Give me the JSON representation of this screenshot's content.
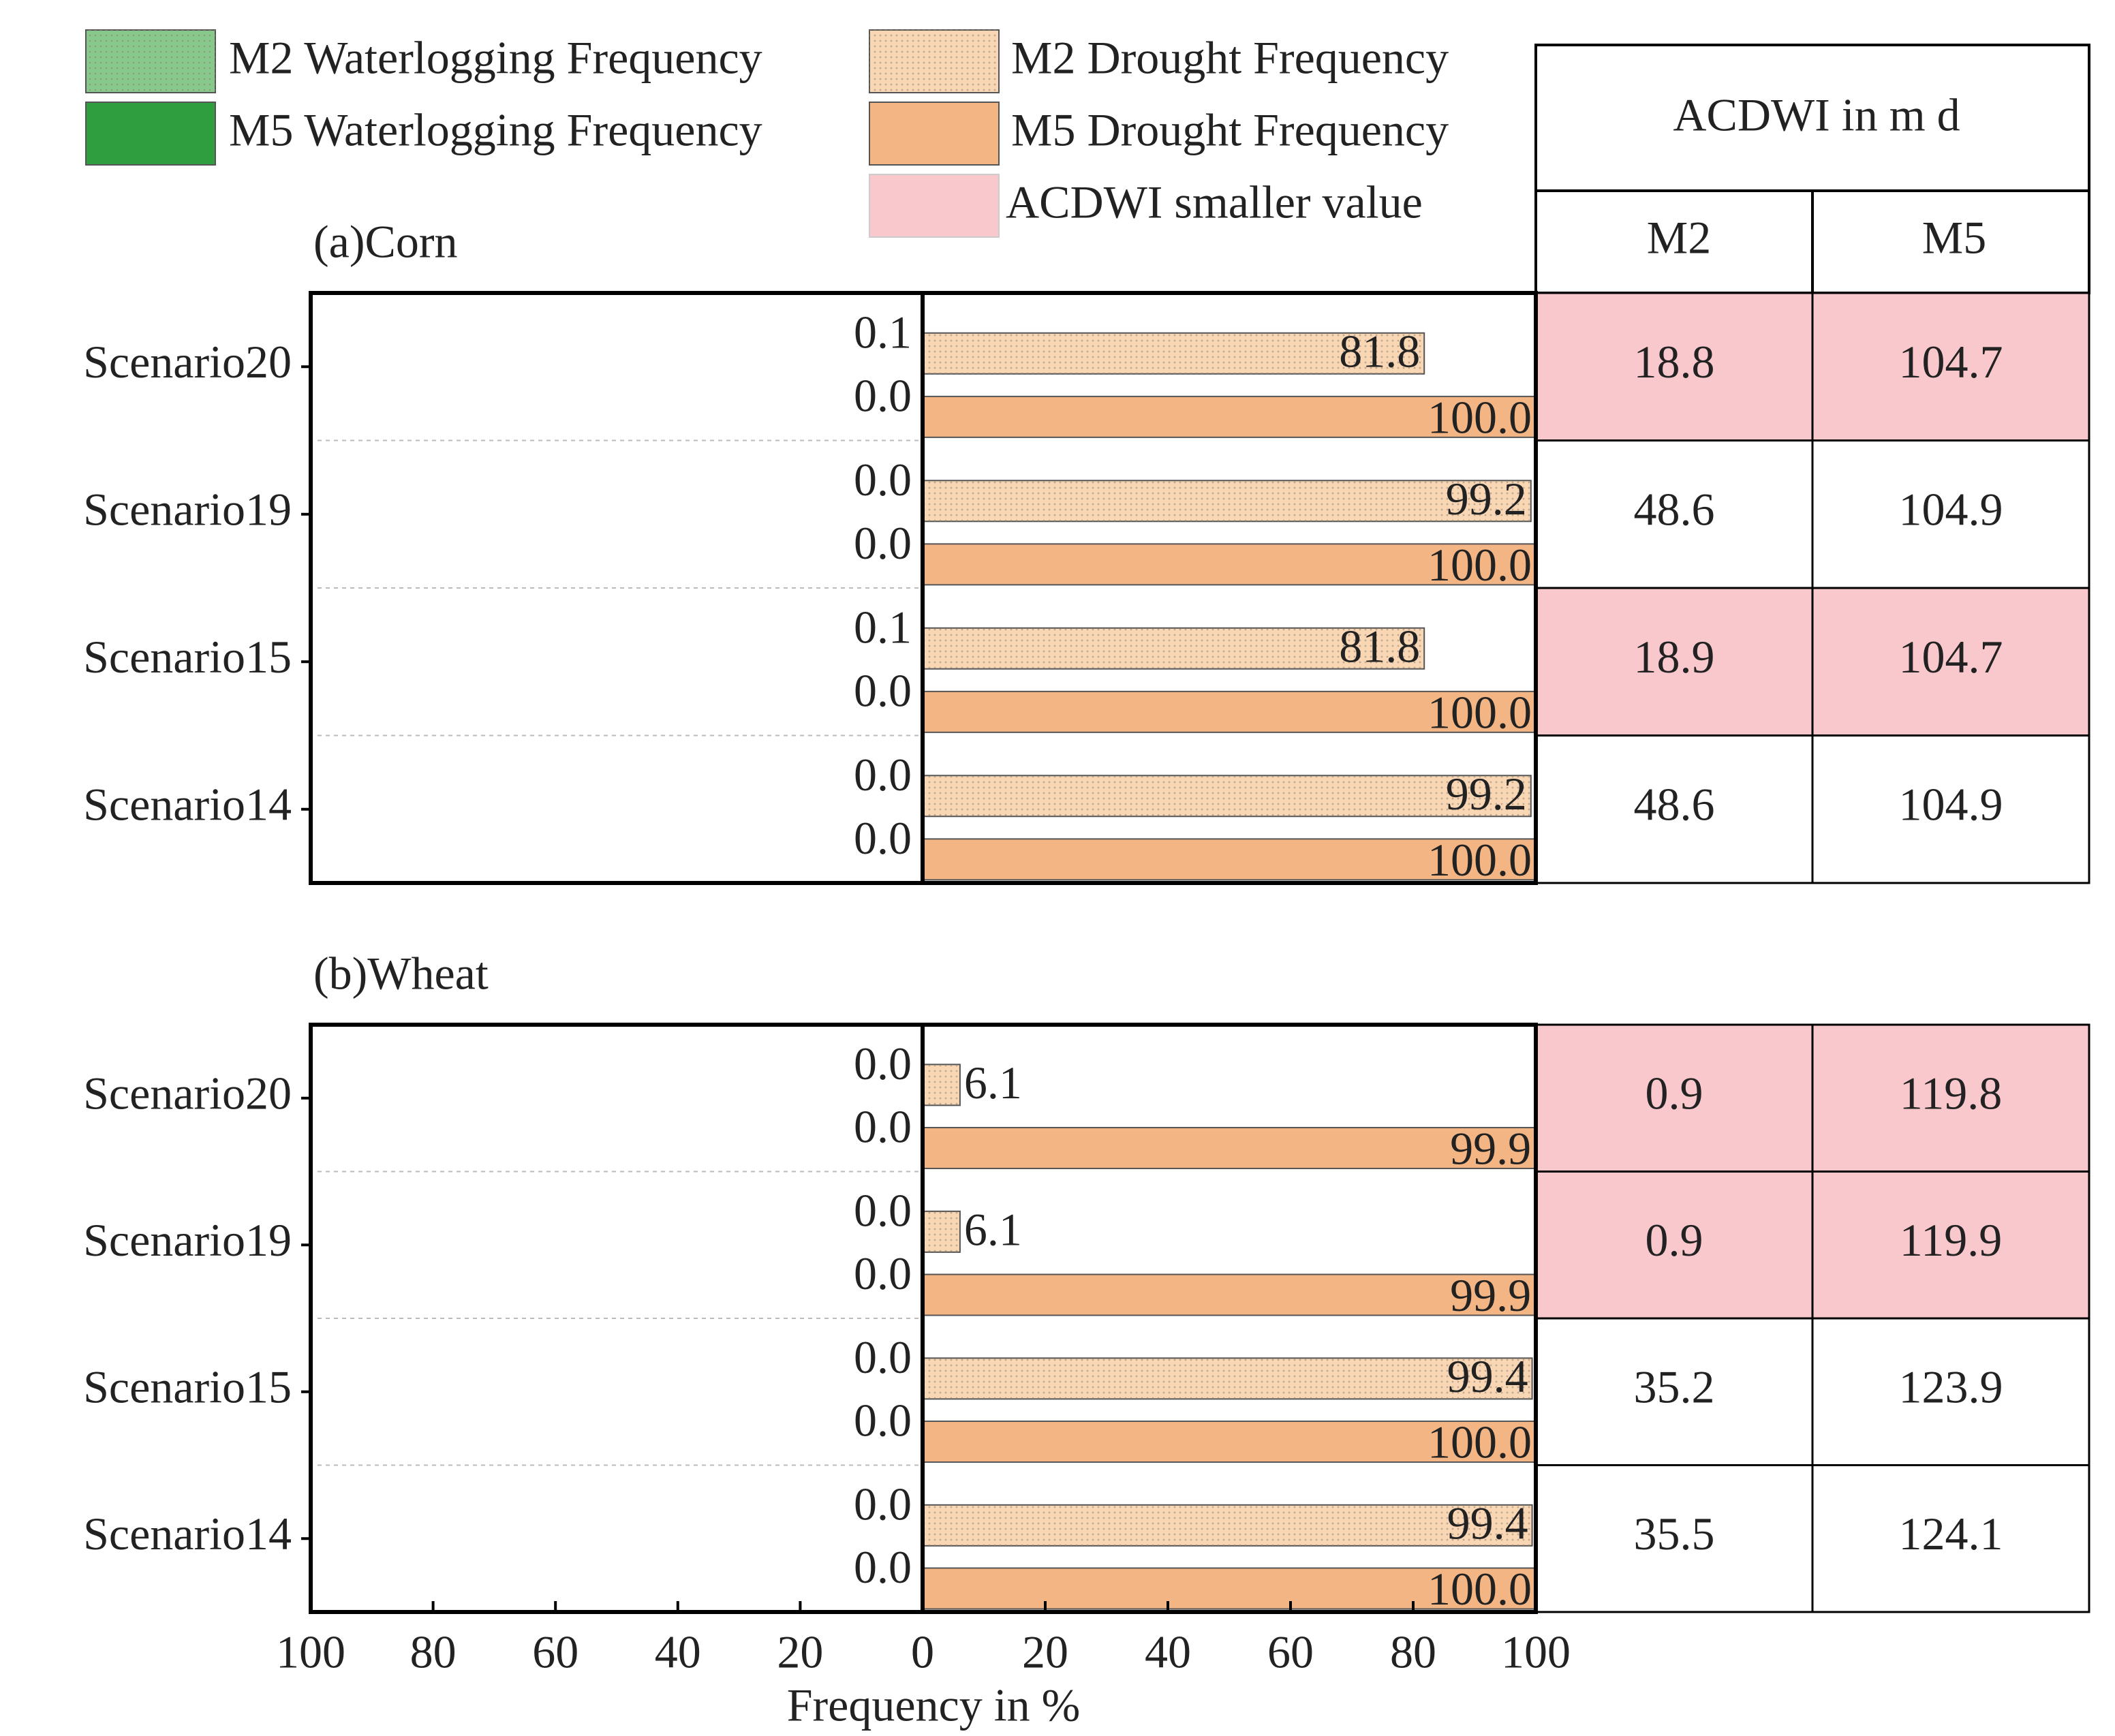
{
  "legend": [
    {
      "name": "M2 Waterlogging Frequency",
      "color": "#86c98a",
      "dotted": true
    },
    {
      "name": "M5 Waterlogging Frequency",
      "color": "#2f9e3f",
      "dotted": false
    },
    {
      "name": "M2 Drought Frequency",
      "color": "#f9d6b4",
      "dotted": true
    },
    {
      "name": "M5 Drought Frequency",
      "color": "#f3b584",
      "dotted": false
    },
    {
      "name": "ACDWI smaller value",
      "color": "#f8c8cc",
      "dotted": false
    }
  ],
  "table": {
    "header": "ACDWI in m d",
    "columns": [
      "M2",
      "M5"
    ]
  },
  "chart_data": [
    {
      "type": "butterfly-bar",
      "title": "(a)Corn",
      "categories": [
        "Scenario20",
        "Scenario19",
        "Scenario15",
        "Scenario14"
      ],
      "xlim_left": [
        100,
        0
      ],
      "xlim": [
        0,
        100
      ],
      "series": [
        {
          "values": [
            0.1,
            0.0,
            0.1,
            0.0
          ],
          "value_labels": [
            "0.1",
            "0.0",
            "0.1",
            "0.0"
          ]
        },
        {
          "values": [
            0.0,
            0.0,
            0.0,
            0.0
          ],
          "value_labels": [
            "0.0",
            "0.0",
            "0.0",
            "0.0"
          ]
        },
        {
          "values": [
            81.8,
            99.2,
            81.8,
            99.2
          ],
          "value_labels": [
            "81.8",
            "99.2",
            "81.8",
            "99.2"
          ]
        },
        {
          "values": [
            100,
            100,
            100,
            100
          ],
          "value_labels": [
            "100.0",
            "100.0",
            "100.0",
            "100.0"
          ]
        }
      ],
      "acdwi": {
        "M2": [
          18.8,
          48.6,
          18.9,
          48.6
        ],
        "M5": [
          104.7,
          104.9,
          104.7,
          104.9
        ],
        "smaller": [
          true,
          false,
          true,
          false
        ]
      }
    },
    {
      "type": "butterfly-bar",
      "title": "(b)Wheat",
      "categories": [
        "Scenario20",
        "Scenario19",
        "Scenario15",
        "Scenario14"
      ],
      "xlim_left": [
        100,
        0
      ],
      "xlim": [
        0,
        100
      ],
      "xticks_left": [
        100,
        80,
        60,
        40,
        20,
        0
      ],
      "xticks": [
        0,
        20,
        40,
        60,
        80,
        100
      ],
      "x_label": "Frequency in %",
      "series": [
        {
          "values": [
            0.0,
            0.0,
            0.0,
            0.0
          ],
          "value_labels": [
            "0.0",
            "0.0",
            "0.0",
            "0.0"
          ]
        },
        {
          "values": [
            0.0,
            0.0,
            0.0,
            0.0
          ],
          "value_labels": [
            "0.0",
            "0.0",
            "0.0",
            "0.0"
          ]
        },
        {
          "values": [
            6.1,
            6.1,
            99.4,
            99.4
          ],
          "value_labels": [
            "6.1",
            "6.1",
            "99.4",
            "99.4"
          ]
        },
        {
          "values": [
            99.9,
            99.9,
            100,
            100
          ],
          "value_labels": [
            "99.9",
            "99.9",
            "100.0",
            "100.0"
          ]
        }
      ],
      "acdwi": {
        "M2": [
          0.9,
          0.9,
          35.2,
          35.5
        ],
        "M5": [
          119.8,
          119.9,
          123.9,
          124.1
        ],
        "smaller": [
          true,
          true,
          false,
          false
        ]
      }
    }
  ]
}
